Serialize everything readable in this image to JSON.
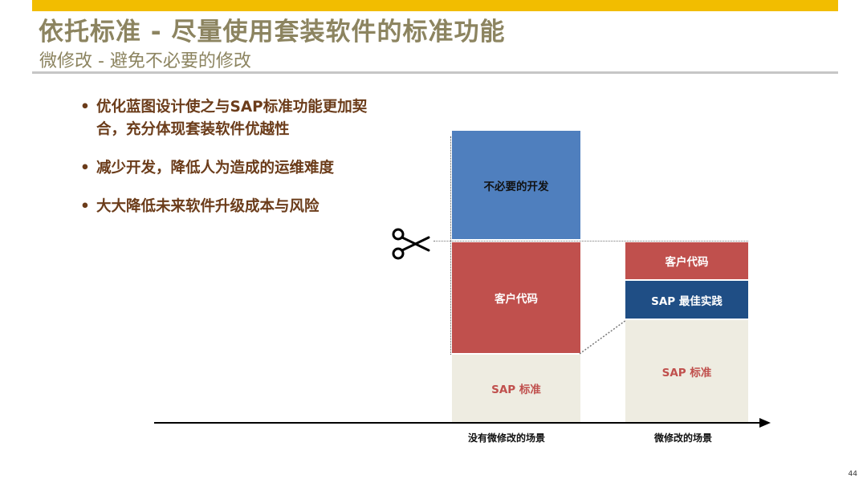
{
  "slide": {
    "title": "依托标准 - 尽量使用套装软件的标准功能",
    "subtitle": "微修改 - 避免不必要的修改",
    "page_number": "44"
  },
  "bullets": [
    "优化蓝图设计使之与SAP标准功能更加契合，充分体现套装软件优越性",
    "减少开发，降低人为造成的运维难度",
    "大大降低未来软件升级成本与风险"
  ],
  "diagram": {
    "scenario_left": {
      "label": "没有微修改的场景",
      "blocks": {
        "unnecessary_dev": "不必要的开发",
        "customer_code": "客户代码",
        "sap_standard": "SAP 标准"
      }
    },
    "scenario_right": {
      "label": "微修改的场景",
      "blocks": {
        "customer_code": "客户代码",
        "sap_best_practice": "SAP 最佳实践",
        "sap_standard": "SAP 标准"
      }
    },
    "icons": {
      "cut": "scissors-icon"
    },
    "colors": {
      "unnecessary_dev": "#4f7fbe",
      "customer_code": "#c0504d",
      "sap_best_practice": "#1f4e85",
      "sap_standard": "#eeece1",
      "accent_bar": "#f2bd00",
      "bullet_text": "#6b3c1a",
      "title_text": "#8c8460"
    }
  }
}
